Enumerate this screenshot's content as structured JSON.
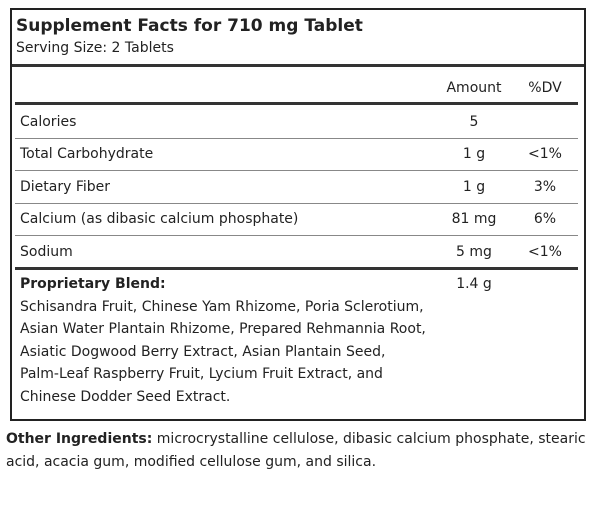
{
  "header": {
    "title": "Supplement Facts for 710 mg Tablet",
    "serving_size": "Serving Size: 2 Tablets"
  },
  "table": {
    "columns": [
      "Amount",
      "%DV"
    ],
    "rows": [
      {
        "name": "Calories",
        "amount": "5"
      },
      {
        "name": "Total Carbohydrate",
        "amount": "1 g",
        "dv": "<1%"
      },
      {
        "name": "Dietary Fiber",
        "amount": "1 g",
        "dv": "3%"
      },
      {
        "name": "Calcium (as dibasic calcium phosphate)",
        "amount": "81 mg",
        "dv": "6%"
      },
      {
        "name": "Sodium",
        "amount": "5 mg",
        "dv": "<1%"
      }
    ],
    "blend": {
      "name": "Proprietary Blend:",
      "amount": "1.4 g",
      "lines": [
        "Schisandra Fruit, Chinese Yam Rhizome, Poria Sclerotium,",
        "Asian Water Plantain Rhizome, Prepared Rehmannia Root,",
        "Asiatic Dogwood Berry Extract, Asian Plantain Seed,",
        "Palm-Leaf Raspberry Fruit, Lycium Fruit Extract, and",
        "Chinese Dodder Seed Extract."
      ]
    }
  },
  "other_ingredients": {
    "label": "Other Ingredients:",
    "text": "microcrystalline cellulose, dibasic calcium phosphate, stearic acid, acacia gum, modified cellulose gum, and silica."
  }
}
